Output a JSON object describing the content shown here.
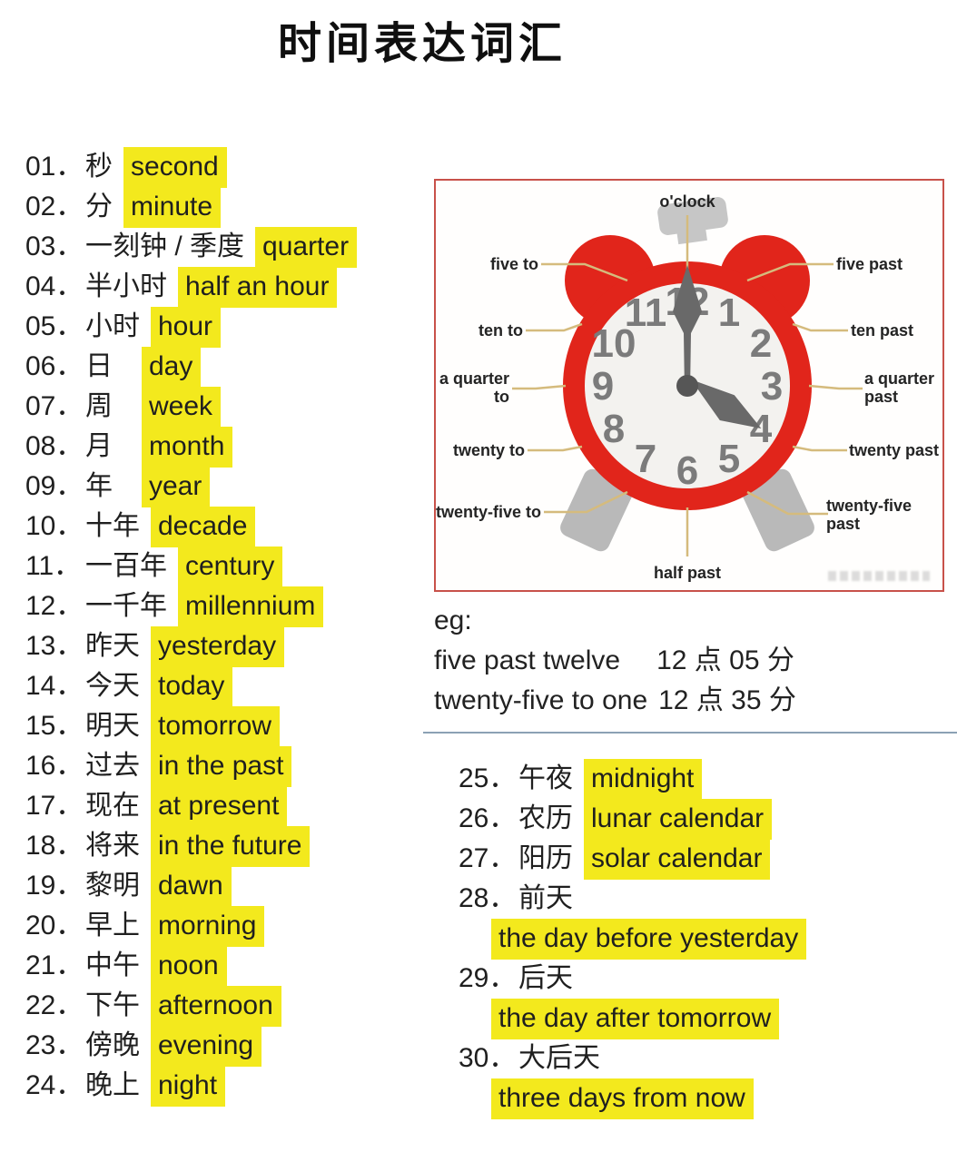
{
  "title": "时间表达词汇",
  "colors": {
    "highlight": "#f3e91d",
    "clock_red": "#e1251b",
    "panel_border": "#c8514a",
    "connector_tan": "#d5bb7d",
    "number_gray": "#7b7b7b",
    "divider_gray": "#8ba1b4"
  },
  "left_list": [
    {
      "num": "01．",
      "cn": "秒",
      "en": "second"
    },
    {
      "num": "02．",
      "cn": "分",
      "en": "minute"
    },
    {
      "num": "03．",
      "cn": "一刻钟 / 季度",
      "en": "quarter"
    },
    {
      "num": "04．",
      "cn": "半小时",
      "en": "half an hour"
    },
    {
      "num": "05．",
      "cn": "小时",
      "en": "hour"
    },
    {
      "num": "06．",
      "cn": "日",
      "en": "day",
      "wide_gap": true
    },
    {
      "num": "07．",
      "cn": "周",
      "en": "week",
      "wide_gap": true
    },
    {
      "num": "08．",
      "cn": "月",
      "en": "month",
      "wide_gap": true
    },
    {
      "num": "09．",
      "cn": "年",
      "en": "year",
      "wide_gap": true
    },
    {
      "num": "10．",
      "cn": "十年",
      "en": "decade"
    },
    {
      "num": "11．",
      "cn": "一百年",
      "en": "century"
    },
    {
      "num": "12．",
      "cn": "一千年",
      "en": "millennium"
    },
    {
      "num": "13．",
      "cn": "昨天",
      "en": "yesterday"
    },
    {
      "num": "14．",
      "cn": "今天",
      "en": "today"
    },
    {
      "num": "15．",
      "cn": "明天",
      "en": "tomorrow"
    },
    {
      "num": "16．",
      "cn": "过去",
      "en": "in the past"
    },
    {
      "num": "17．",
      "cn": "现在",
      "en": "at present"
    },
    {
      "num": "18．",
      "cn": "将来",
      "en": "in the future"
    },
    {
      "num": "19．",
      "cn": "黎明",
      "en": "dawn"
    },
    {
      "num": "20．",
      "cn": "早上",
      "en": "morning"
    },
    {
      "num": "21．",
      "cn": "中午",
      "en": "noon"
    },
    {
      "num": "22．",
      "cn": "下午",
      "en": "afternoon"
    },
    {
      "num": "23．",
      "cn": "傍晚",
      "en": "evening"
    },
    {
      "num": "24．",
      "cn": "晚上",
      "en": "night"
    }
  ],
  "right_list": [
    {
      "num": "25．",
      "cn": "午夜",
      "en": "midnight",
      "wrap": false
    },
    {
      "num": "26．",
      "cn": "农历",
      "en": "lunar calendar",
      "wrap": false
    },
    {
      "num": "27．",
      "cn": "阳历",
      "en": "solar calendar",
      "wrap": false
    },
    {
      "num": "28．",
      "cn": "前天",
      "en": "the day before yesterday",
      "wrap": true
    },
    {
      "num": "29．",
      "cn": "后天",
      "en": "the day after tomorrow",
      "wrap": true
    },
    {
      "num": "30．",
      "cn": "大后天",
      "en": "three days from now",
      "wrap": true
    }
  ],
  "clock": {
    "numbers": [
      "12",
      "1",
      "2",
      "3",
      "4",
      "5",
      "6",
      "7",
      "8",
      "9",
      "10",
      "11"
    ],
    "labels": {
      "top": "o'clock",
      "five_past": "five past",
      "ten_past": "ten past",
      "quarter_past_1": "a quarter",
      "quarter_past_2": "past",
      "twenty_past": "twenty past",
      "twenty_five_past_1": "twenty-five",
      "twenty_five_past_2": "past",
      "half_past": "half past",
      "twenty_five_to": "twenty-five to",
      "twenty_to": "twenty to",
      "quarter_to_1": "a quarter",
      "quarter_to_2": "to",
      "ten_to": "ten to",
      "five_to": "five to"
    }
  },
  "example": {
    "prefix": "eg:",
    "lines": [
      {
        "en": "five past twelve",
        "cn": "12 点 05 分"
      },
      {
        "en": "twenty-five to one",
        "cn": "12 点 35 分"
      }
    ]
  }
}
